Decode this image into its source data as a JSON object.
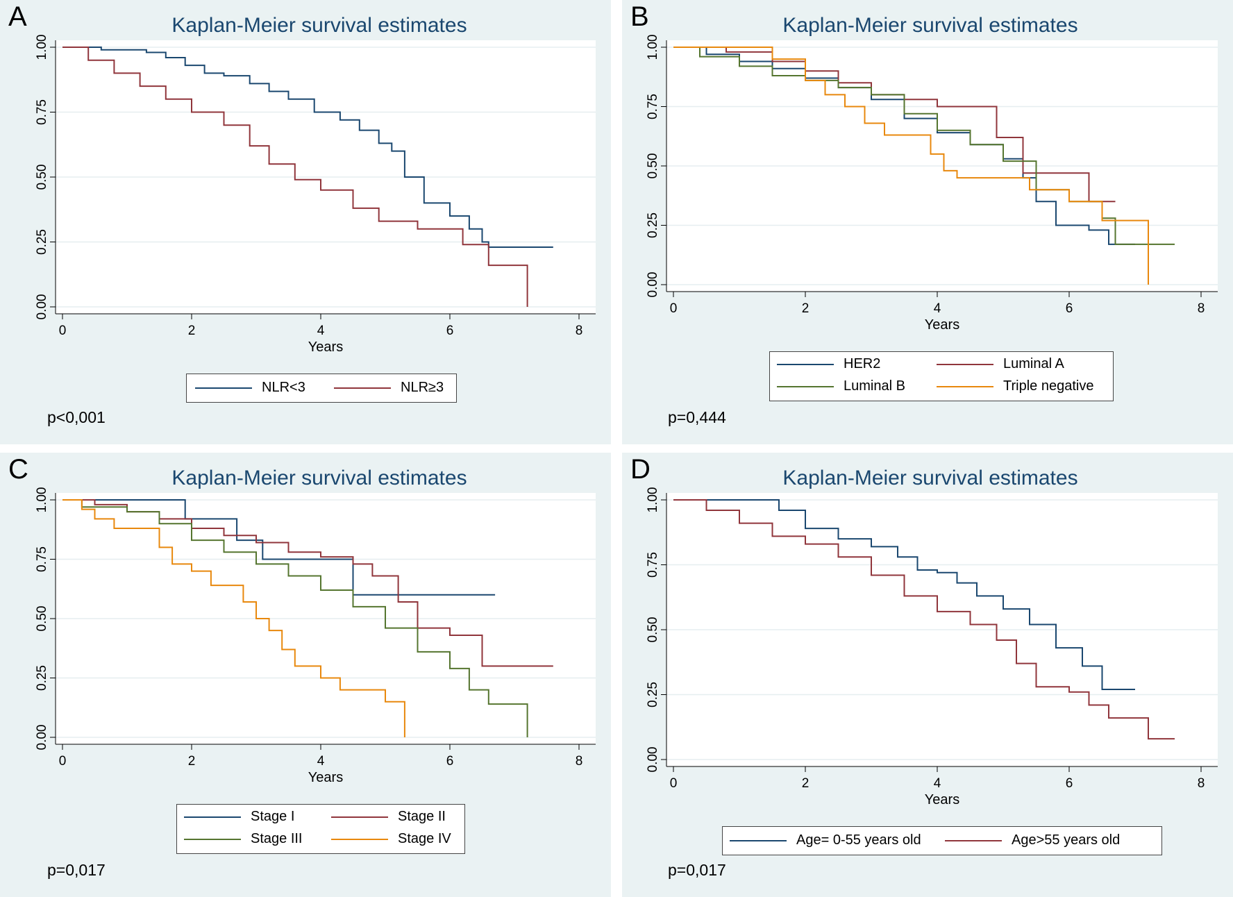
{
  "chart_data": [
    {
      "panel": "A",
      "type": "line",
      "title": "Kaplan-Meier survival estimates",
      "xlabel": "Years",
      "ylabel": "",
      "xlim": [
        0,
        8
      ],
      "ylim": [
        0,
        1
      ],
      "x_ticks": [
        "0",
        "2",
        "4",
        "6",
        "8"
      ],
      "y_ticks": [
        "0.00",
        "0.25",
        "0.50",
        "0.75",
        "1.00"
      ],
      "grid": true,
      "legend_position": "bottom",
      "p_value": "p<0,001",
      "series": [
        {
          "name": "NLR<3",
          "color": "#1a476f",
          "x": [
            0,
            0.6,
            1.3,
            1.6,
            1.9,
            2.2,
            2.5,
            2.9,
            3.2,
            3.5,
            3.9,
            4.3,
            4.6,
            4.9,
            5.1,
            5.3,
            5.6,
            6.0,
            6.3,
            6.5,
            6.6,
            7.6
          ],
          "y": [
            1.0,
            0.99,
            0.98,
            0.96,
            0.93,
            0.9,
            0.89,
            0.86,
            0.83,
            0.8,
            0.75,
            0.72,
            0.68,
            0.63,
            0.6,
            0.5,
            0.4,
            0.35,
            0.3,
            0.25,
            0.23,
            0.23
          ]
        },
        {
          "name": "NLR≥3",
          "color": "#90353b",
          "x": [
            0,
            0.4,
            0.8,
            1.2,
            1.6,
            2.0,
            2.5,
            2.9,
            3.2,
            3.6,
            4.0,
            4.5,
            4.9,
            5.5,
            6.2,
            6.6,
            7.2,
            7.2
          ],
          "y": [
            1.0,
            0.95,
            0.9,
            0.85,
            0.8,
            0.75,
            0.7,
            0.62,
            0.55,
            0.49,
            0.45,
            0.38,
            0.33,
            0.3,
            0.24,
            0.16,
            0.16,
            0.0
          ]
        }
      ]
    },
    {
      "panel": "B",
      "type": "line",
      "title": "Kaplan-Meier survival estimates",
      "xlabel": "Years",
      "ylabel": "",
      "xlim": [
        0,
        8
      ],
      "ylim": [
        0,
        1
      ],
      "x_ticks": [
        "0",
        "2",
        "4",
        "6",
        "8"
      ],
      "y_ticks": [
        "0.00",
        "0.25",
        "0.50",
        "0.75",
        "1.00"
      ],
      "grid": true,
      "legend_position": "bottom",
      "p_value": "p=0,444",
      "series": [
        {
          "name": "HER2",
          "color": "#1a476f",
          "x": [
            0,
            0.5,
            1.0,
            1.5,
            2.0,
            2.5,
            3.0,
            3.5,
            4.0,
            4.5,
            5.0,
            5.3,
            5.5,
            5.8,
            6.3,
            6.6,
            7.0
          ],
          "y": [
            1.0,
            0.97,
            0.94,
            0.91,
            0.87,
            0.83,
            0.78,
            0.7,
            0.64,
            0.59,
            0.53,
            0.45,
            0.35,
            0.25,
            0.23,
            0.17,
            0.17
          ]
        },
        {
          "name": "Luminal A",
          "color": "#90353b",
          "x": [
            0,
            0.8,
            1.5,
            2.0,
            2.5,
            3.0,
            3.5,
            4.0,
            4.5,
            4.9,
            5.3,
            6.0,
            6.3,
            6.7
          ],
          "y": [
            1.0,
            0.98,
            0.94,
            0.9,
            0.85,
            0.8,
            0.78,
            0.75,
            0.75,
            0.62,
            0.47,
            0.47,
            0.35,
            0.35
          ]
        },
        {
          "name": "Luminal B",
          "color": "#55752f",
          "x": [
            0,
            0.4,
            1.0,
            1.5,
            2.0,
            2.5,
            3.0,
            3.5,
            4.0,
            4.5,
            5.0,
            5.5,
            6.0,
            6.5,
            6.7,
            7.6
          ],
          "y": [
            1.0,
            0.96,
            0.92,
            0.88,
            0.86,
            0.83,
            0.8,
            0.72,
            0.65,
            0.59,
            0.52,
            0.4,
            0.35,
            0.28,
            0.17,
            0.17
          ]
        },
        {
          "name": "Triple negative",
          "color": "#e8880d",
          "x": [
            0,
            0.9,
            1.5,
            2.0,
            2.3,
            2.6,
            2.9,
            3.2,
            3.5,
            3.9,
            4.1,
            4.3,
            5.0,
            5.4,
            6.0,
            6.5,
            7.2,
            7.2
          ],
          "y": [
            1.0,
            1.0,
            0.95,
            0.86,
            0.8,
            0.75,
            0.68,
            0.63,
            0.63,
            0.55,
            0.48,
            0.45,
            0.45,
            0.4,
            0.35,
            0.27,
            0.21,
            0.0
          ]
        }
      ]
    },
    {
      "panel": "C",
      "type": "line",
      "title": "Kaplan-Meier survival estimates",
      "xlabel": "Years",
      "ylabel": "",
      "xlim": [
        0,
        8
      ],
      "ylim": [
        0,
        1
      ],
      "x_ticks": [
        "0",
        "2",
        "4",
        "6",
        "8"
      ],
      "y_ticks": [
        "0.00",
        "0.25",
        "0.50",
        "0.75",
        "1.00"
      ],
      "grid": true,
      "legend_position": "bottom",
      "p_value": "p=0,017",
      "series": [
        {
          "name": "Stage I",
          "color": "#1a476f",
          "x": [
            0,
            1.9,
            1.9,
            2.7,
            2.7,
            3.1,
            3.1,
            4.5,
            4.5,
            6.7
          ],
          "y": [
            1.0,
            1.0,
            0.92,
            0.92,
            0.83,
            0.83,
            0.75,
            0.75,
            0.6,
            0.6
          ]
        },
        {
          "name": "Stage II",
          "color": "#90353b",
          "x": [
            0,
            0.5,
            1.0,
            1.5,
            2.0,
            2.5,
            3.0,
            3.5,
            4.0,
            4.5,
            4.8,
            5.2,
            5.5,
            6.0,
            6.5,
            7.6
          ],
          "y": [
            1.0,
            0.98,
            0.95,
            0.92,
            0.88,
            0.85,
            0.82,
            0.78,
            0.76,
            0.73,
            0.68,
            0.57,
            0.46,
            0.43,
            0.3,
            0.3
          ]
        },
        {
          "name": "Stage III",
          "color": "#55752f",
          "x": [
            0,
            0.3,
            1.0,
            1.5,
            2.0,
            2.5,
            3.0,
            3.5,
            4.0,
            4.5,
            5.0,
            5.5,
            6.0,
            6.3,
            6.6,
            7.2,
            7.2
          ],
          "y": [
            1.0,
            0.97,
            0.95,
            0.9,
            0.83,
            0.78,
            0.73,
            0.68,
            0.62,
            0.55,
            0.46,
            0.36,
            0.29,
            0.2,
            0.14,
            0.14,
            0.0
          ]
        },
        {
          "name": "Stage IV",
          "color": "#e8880d",
          "x": [
            0,
            0.3,
            0.5,
            0.8,
            1.5,
            1.7,
            2.0,
            2.3,
            2.8,
            3.0,
            3.2,
            3.4,
            3.6,
            4.0,
            4.3,
            4.8,
            5.0,
            5.3,
            5.3
          ],
          "y": [
            1.0,
            0.96,
            0.92,
            0.88,
            0.8,
            0.73,
            0.7,
            0.64,
            0.57,
            0.5,
            0.45,
            0.37,
            0.3,
            0.25,
            0.2,
            0.2,
            0.15,
            0.08,
            0.0
          ]
        }
      ]
    },
    {
      "panel": "D",
      "type": "line",
      "title": "Kaplan-Meier survival estimates",
      "xlabel": "Years",
      "ylabel": "",
      "xlim": [
        0,
        8
      ],
      "ylim": [
        0,
        1
      ],
      "x_ticks": [
        "0",
        "2",
        "4",
        "6",
        "8"
      ],
      "y_ticks": [
        "0.00",
        "0.25",
        "0.50",
        "0.75",
        "1.00"
      ],
      "grid": true,
      "legend_position": "bottom",
      "p_value": "p=0,017",
      "series": [
        {
          "name": "Age= 0-55 years old",
          "color": "#1a476f",
          "x": [
            0,
            1.3,
            1.6,
            2.0,
            2.5,
            3.0,
            3.4,
            3.7,
            4.0,
            4.3,
            4.6,
            5.0,
            5.4,
            5.8,
            6.2,
            6.5,
            7.0
          ],
          "y": [
            1.0,
            1.0,
            0.96,
            0.89,
            0.85,
            0.82,
            0.78,
            0.73,
            0.72,
            0.68,
            0.63,
            0.58,
            0.52,
            0.43,
            0.36,
            0.27,
            0.27
          ]
        },
        {
          "name": "Age>55 years old",
          "color": "#90353b",
          "x": [
            0,
            0.5,
            1.0,
            1.5,
            2.0,
            2.5,
            3.0,
            3.5,
            4.0,
            4.5,
            4.9,
            5.2,
            5.5,
            6.0,
            6.3,
            6.6,
            7.2,
            7.2,
            7.6
          ],
          "y": [
            1.0,
            0.96,
            0.91,
            0.86,
            0.83,
            0.78,
            0.71,
            0.63,
            0.57,
            0.52,
            0.46,
            0.37,
            0.28,
            0.26,
            0.21,
            0.16,
            0.16,
            0.08,
            0.08
          ]
        }
      ]
    }
  ],
  "panels": [
    {
      "letter": "A",
      "title": "Kaplan-Meier survival estimates",
      "xlabel": "Years",
      "p_value": "p<0,001",
      "legend": [
        "NLR<3",
        "NLR≥3"
      ]
    },
    {
      "letter": "B",
      "title": "Kaplan-Meier survival estimates",
      "xlabel": "Years",
      "p_value": "p=0,444",
      "legend": [
        "HER2",
        "Luminal A",
        "Luminal B",
        "Triple negative"
      ]
    },
    {
      "letter": "C",
      "title": "Kaplan-Meier survival estimates",
      "xlabel": "Years",
      "p_value": "p=0,017",
      "legend": [
        "Stage I",
        "Stage II",
        "Stage III",
        "Stage IV"
      ]
    },
    {
      "letter": "D",
      "title": "Kaplan-Meier survival estimates",
      "xlabel": "Years",
      "p_value": "p=0,017",
      "legend": [
        "Age= 0-55 years old",
        "Age>55 years old"
      ]
    }
  ]
}
